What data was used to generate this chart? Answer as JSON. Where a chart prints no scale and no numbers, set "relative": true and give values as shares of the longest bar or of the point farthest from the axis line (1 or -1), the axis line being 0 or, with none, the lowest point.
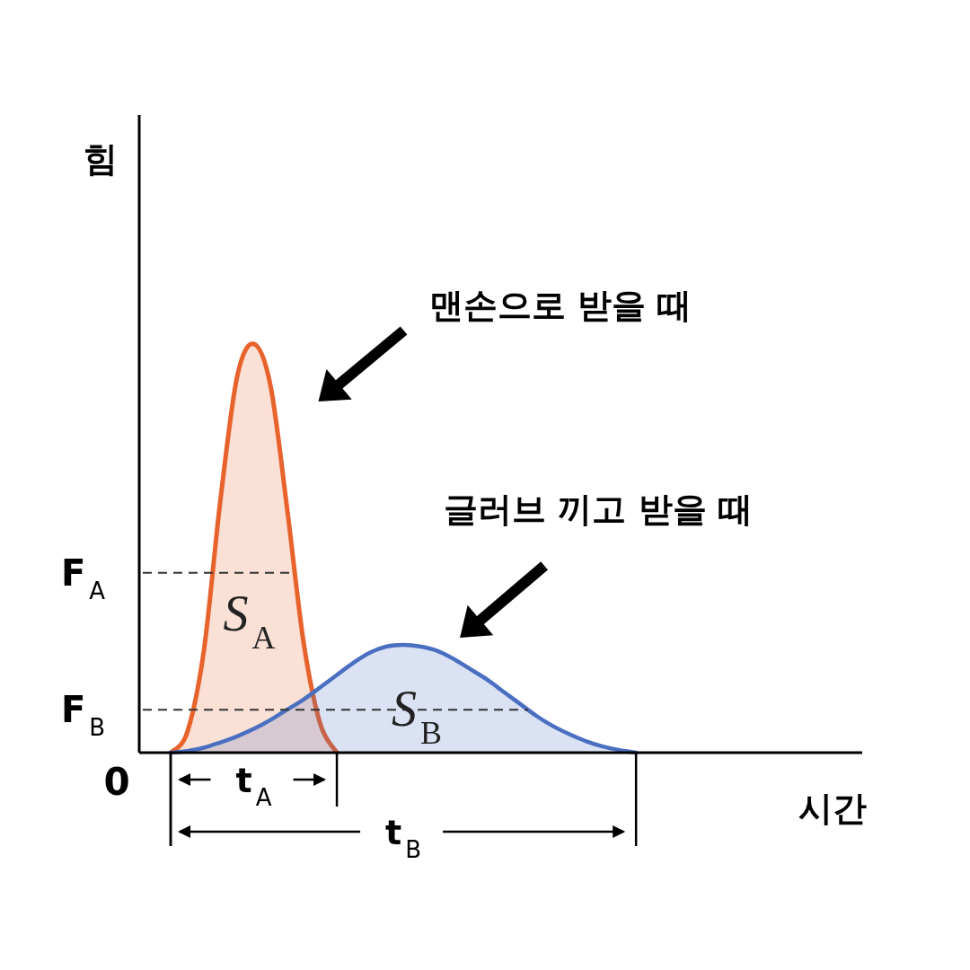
{
  "chart_data": {
    "type": "area",
    "relative": true,
    "xlabel": "시간",
    "categories": [
      null,
      null,
      null,
      null,
      null,
      null,
      null,
      null,
      null,
      null,
      null,
      null,
      null,
      null,
      null,
      null,
      null,
      null,
      null,
      null,
      null,
      null,
      null,
      null,
      null,
      null,
      null,
      null,
      null,
      null,
      null,
      null,
      null,
      null,
      null,
      null,
      null,
      null,
      null,
      null,
      null,
      null
    ],
    "series": [
      {
        "color": "#e8622c",
        "values": [
          0,
          0.05,
          0.25,
          0.62,
          0.92,
          1,
          0.9,
          0.6,
          0.27,
          0.07,
          0,
          null,
          null,
          null,
          null,
          null,
          null,
          null,
          null,
          null,
          null,
          null,
          null,
          null,
          null,
          null,
          null,
          null,
          null,
          null,
          null,
          null,
          null,
          null,
          null,
          null,
          null,
          null,
          null,
          null,
          null,
          null
        ]
      },
      {
        "color": "#4a6fc1",
        "values": [
          0,
          0.004,
          0.012,
          0.025,
          0.04,
          0.058,
          0.08,
          0.105,
          0.13,
          0.16,
          0.19,
          0.22,
          0.245,
          0.26,
          0.264,
          0.26,
          0.25,
          0.23,
          0.205,
          0.18,
          0.15,
          0.12,
          0.09,
          0.065,
          0.045,
          0.028,
          0.015,
          0.006,
          0,
          null,
          null,
          null,
          null,
          null,
          null,
          null,
          null,
          null,
          null,
          null,
          null,
          null
        ]
      }
    ],
    "ref_lines": [
      {
        "axis": "y",
        "value": 0.44,
        "label": "F$_{A}$",
        "line_style": "dashed",
        "color": "#333333"
      },
      {
        "axis": "y",
        "value": 0.105,
        "label": "F$_{B}$",
        "line_style": "dashed",
        "color": "#333333"
      }
    ],
    "annotations": [
      "0",
      "S$_{A}$",
      "S$_{B}$",
      "t$_{A}$",
      "t$_{B}$",
      "맨손으로 받을 때",
      "글러브 끼고 받을 때",
      "힘"
    ],
    "grid": false,
    "marker": "none",
    "line_style": "solid"
  }
}
